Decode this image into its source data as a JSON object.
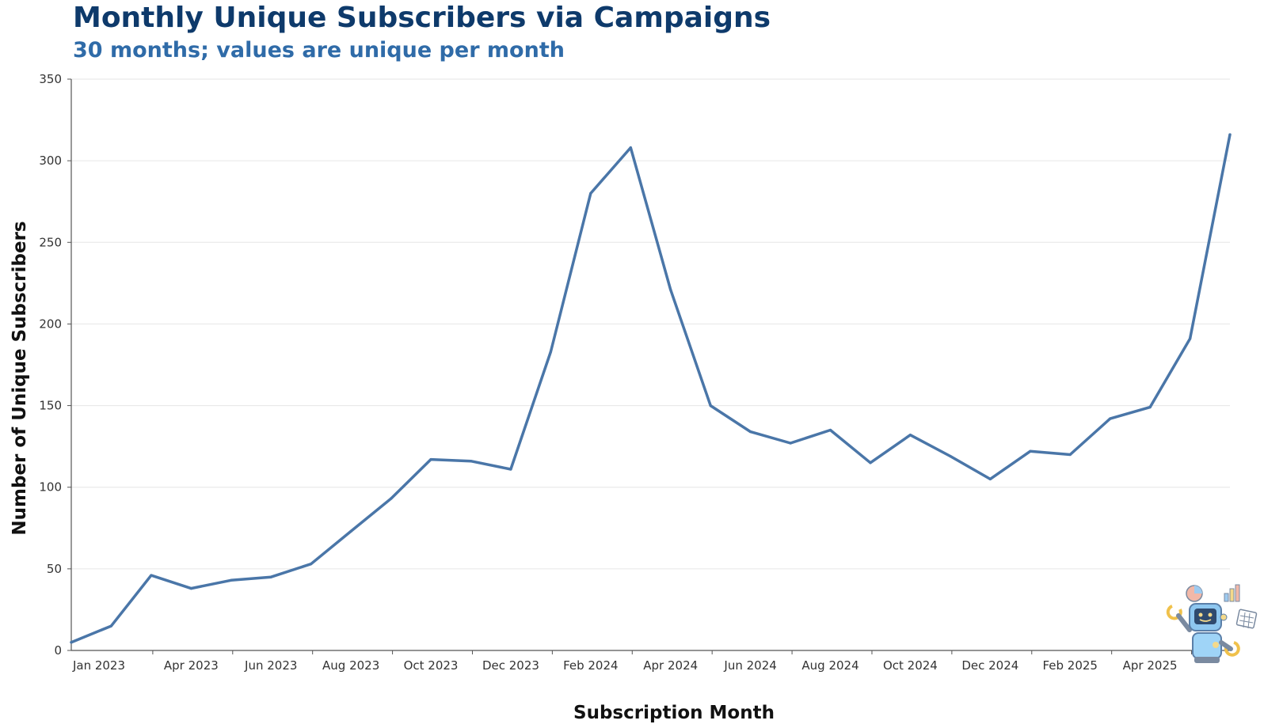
{
  "chart_data": {
    "type": "line",
    "title": "Monthly Unique Subscribers via Campaigns",
    "subtitle": "30 months; values are unique per month",
    "xlabel": "Subscription Month",
    "ylabel": "Number of Unique Subscribers",
    "ylim": [
      0,
      350
    ],
    "y_ticks": [
      "0",
      "50",
      "100",
      "150",
      "200",
      "250",
      "300",
      "350"
    ],
    "x_tick_labels": [
      "Jan 2023",
      "Apr 2023",
      "Jun 2023",
      "Aug 2023",
      "Oct 2023",
      "Dec 2023",
      "Feb 2024",
      "Apr 2024",
      "Jun 2024",
      "Aug 2024",
      "Oct 2024",
      "Dec 2024",
      "Feb 2025",
      "Apr 2025"
    ],
    "x": [
      "2023-01",
      "2023-02",
      "2023-03",
      "2023-04",
      "2023-05",
      "2023-06",
      "2023-07",
      "2023-08",
      "2023-09",
      "2023-10",
      "2023-11",
      "2023-12",
      "2024-01",
      "2024-02",
      "2024-03",
      "2024-04",
      "2024-05",
      "2024-06",
      "2024-07",
      "2024-08",
      "2024-09",
      "2024-10",
      "2024-11",
      "2024-12",
      "2025-01",
      "2025-02",
      "2025-03",
      "2025-04",
      "2025-05",
      "2025-06"
    ],
    "series": [
      {
        "values": [
          5,
          15,
          46,
          38,
          43,
          45,
          53,
          73,
          93,
          117,
          116,
          111,
          183,
          280,
          308,
          221,
          150,
          134,
          127,
          135,
          115,
          132,
          119,
          105,
          122,
          120,
          142,
          149,
          191,
          316
        ]
      }
    ],
    "line_color": "#4a76a8",
    "grid": true,
    "legend": "none"
  },
  "mascot": {
    "icon": "robot-mascot-icon"
  }
}
